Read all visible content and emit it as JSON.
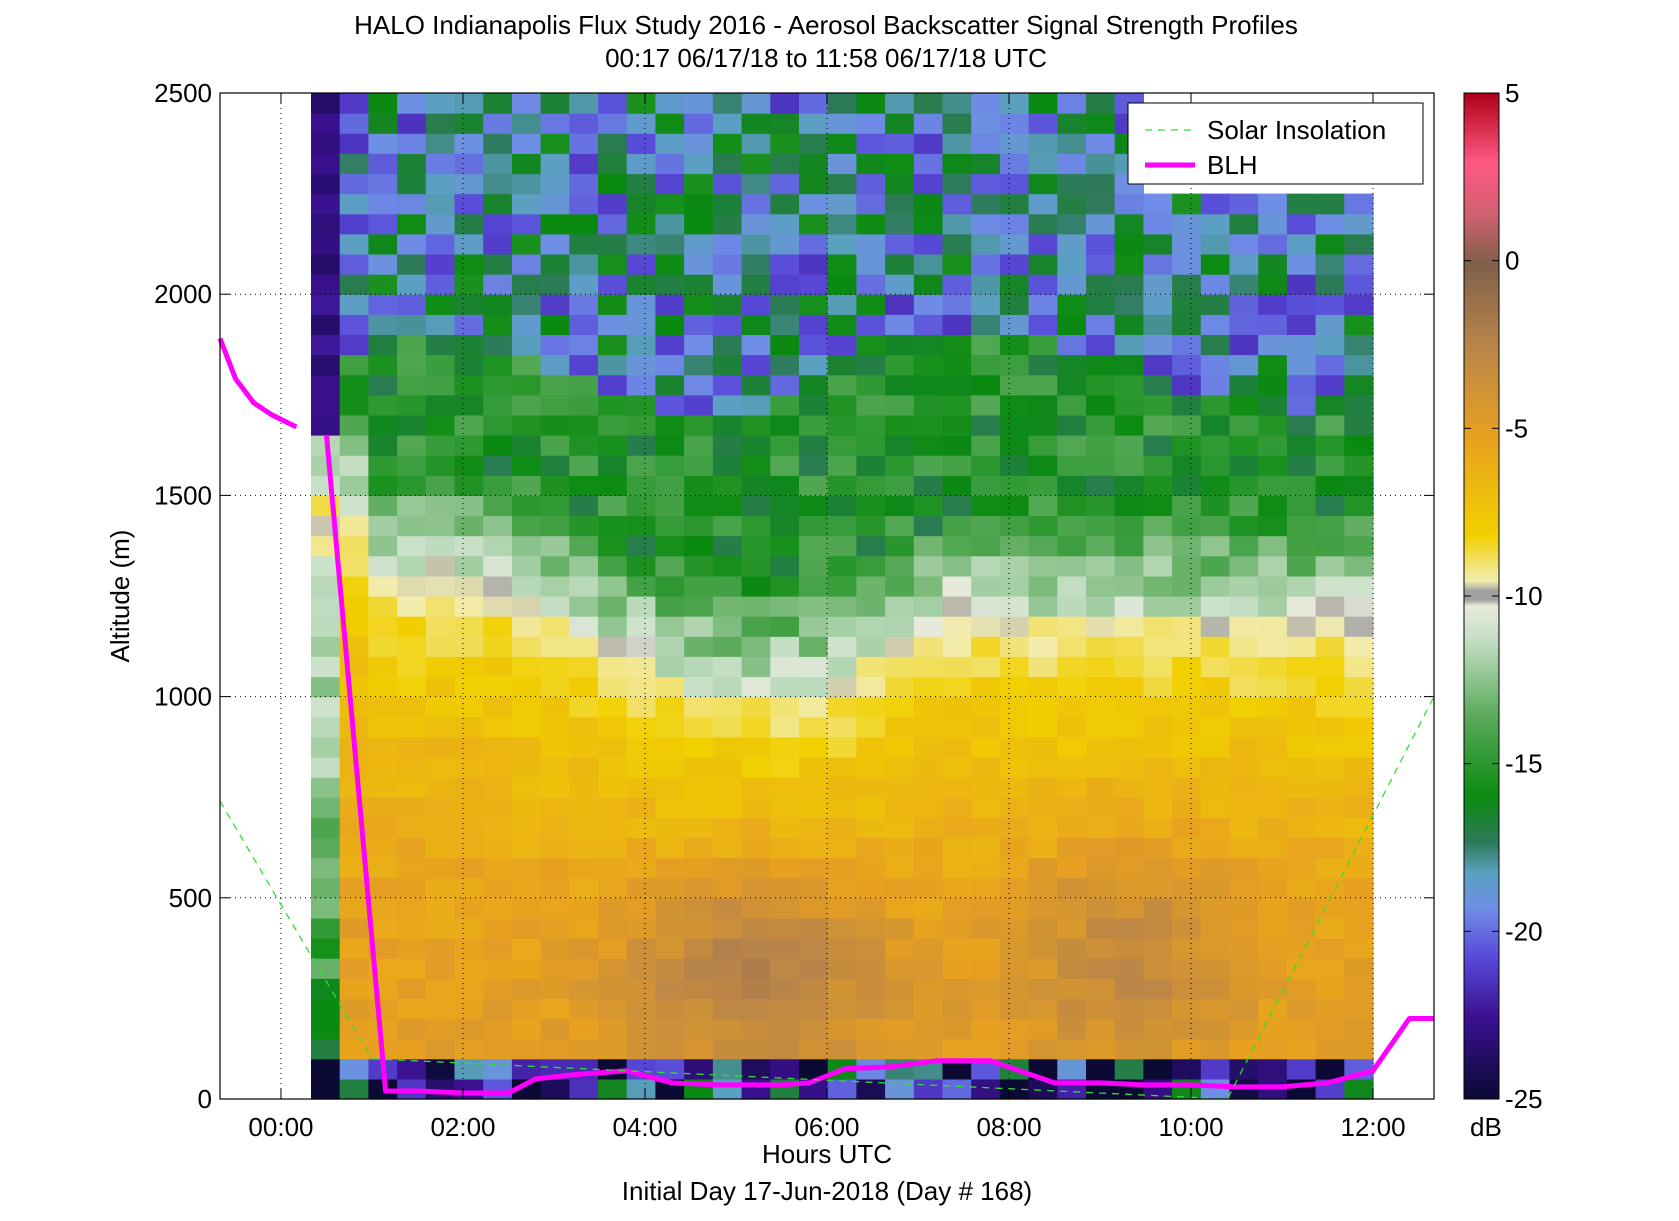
{
  "chart_data": {
    "type": "heatmap",
    "title": "HALO Indianapolis Flux Study 2016 - Aerosol Backscatter Signal Strength Profiles",
    "subtitle": "00:17 06/17/18 to 11:58 06/17/18  UTC",
    "xlabel": "Hours UTC",
    "xlabel2": "Initial Day 17-Jun-2018 (Day # 168)",
    "ylabel": "Altitude (m)",
    "xlim": [
      -0.67,
      12.67
    ],
    "ylim": [
      0,
      2500
    ],
    "x_ticks": [
      0,
      2,
      4,
      6,
      8,
      10,
      12
    ],
    "x_tick_labels": [
      "00:00",
      "02:00",
      "04:00",
      "06:00",
      "08:00",
      "10:00",
      "12:00"
    ],
    "y_ticks": [
      0,
      500,
      1000,
      1500,
      2000,
      2500
    ],
    "y_tick_labels": [
      "0",
      "500",
      "1000",
      "1500",
      "2000",
      "2500"
    ],
    "grid": true,
    "legend_placement": "top-right",
    "legend": [
      {
        "label": "Solar Insolation",
        "color": "#33dd33",
        "style": "dashed"
      },
      {
        "label": "BLH",
        "color": "#ff00ff",
        "style": "solid"
      }
    ],
    "colorbar": {
      "label": "dB",
      "range": [
        -25,
        5
      ],
      "ticks": [
        -25,
        -20,
        -15,
        -10,
        -5,
        0,
        5
      ],
      "tick_labels": [
        "-25",
        "-20",
        "-15",
        "-10",
        "-5",
        "0",
        "5"
      ]
    },
    "heatmap": {
      "x_start": 0.33,
      "x_end": 12.0,
      "y_min": 0,
      "y_max": 2500,
      "bottom_gate": 100,
      "description_values_dB": "approximate signal strength field",
      "profile_regions": [
        {
          "altitude_to": 100,
          "value": -20
        },
        {
          "altitude_to": 700,
          "value": -4.5
        },
        {
          "altitude_to": 1000,
          "value": -7
        },
        {
          "altitude_to": 1300,
          "value": -9
        },
        {
          "altitude_to": 1700,
          "value": -15
        },
        {
          "altitude_to": 2500,
          "value": -19
        }
      ]
    },
    "series": [
      {
        "name": "BLH",
        "x": [
          -0.67,
          -0.5,
          -0.3,
          -0.1,
          0.17,
          0.5,
          1.15,
          1.5,
          2.0,
          2.5,
          2.8,
          3.2,
          3.8,
          4.3,
          4.8,
          5.5,
          5.8,
          6.2,
          6.7,
          7.2,
          7.8,
          8.5,
          9.0,
          9.5,
          10.0,
          10.5,
          11.0,
          11.5,
          12.0,
          12.4,
          12.67
        ],
        "y": [
          1890,
          1790,
          1730,
          1700,
          1670,
          1650,
          20,
          20,
          15,
          15,
          50,
          60,
          70,
          40,
          35,
          35,
          40,
          75,
          80,
          95,
          95,
          40,
          40,
          35,
          35,
          30,
          30,
          40,
          70,
          200,
          200
        ]
      },
      {
        "name": "Solar Insolation",
        "x": [
          -0.67,
          1.0,
          10.4,
          12.67
        ],
        "y": [
          740,
          100,
          0,
          1000
        ]
      }
    ]
  }
}
